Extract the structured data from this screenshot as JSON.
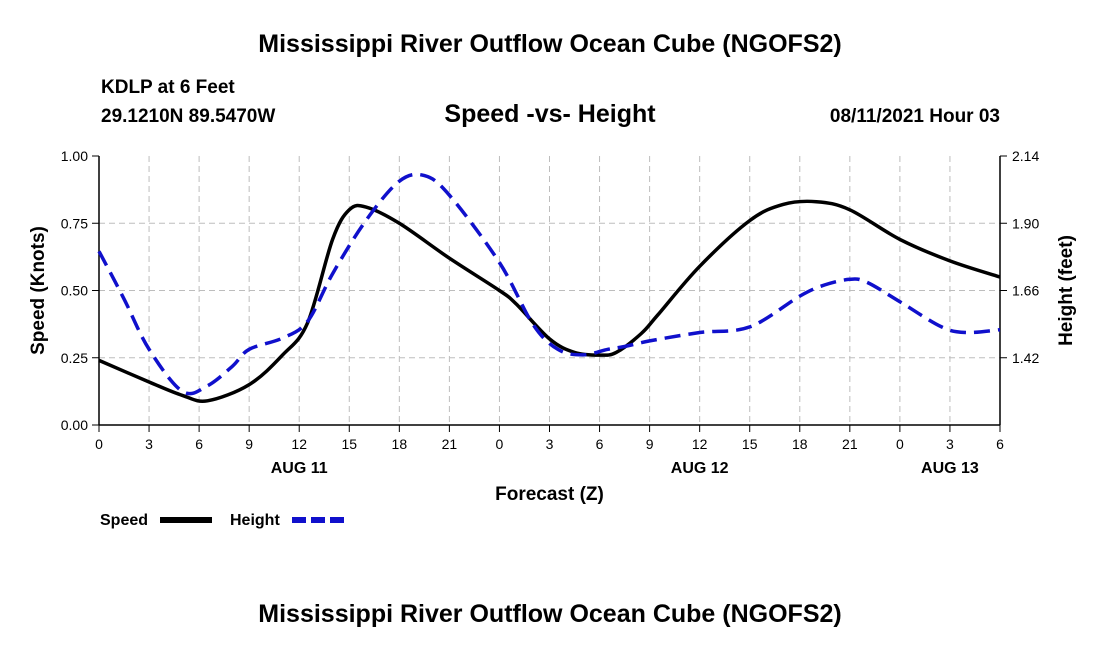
{
  "page": {
    "title_top": "Mississippi River Outflow Ocean Cube (NGOFS2)",
    "title_bottom": "Mississippi River Outflow Ocean Cube (NGOFS2)",
    "station": "KDLP at 6 Feet",
    "coords": "29.1210N  89.5470W",
    "timestamp": "08/11/2021 Hour 03"
  },
  "colors": {
    "speed": "#000000",
    "height": "#1010cc",
    "grid": "#bdbdbd"
  },
  "chart_data": {
    "type": "line",
    "title": "Speed -vs- Height",
    "xlabel": "Forecast (Z)",
    "ylabel": "Speed (Knots)",
    "y2label": "Height (feet)",
    "x_range": [
      0,
      54
    ],
    "ylim": [
      0,
      1.0
    ],
    "y2lim": [
      1.18,
      2.14
    ],
    "y_ticks": [
      0.0,
      0.25,
      0.5,
      0.75,
      1.0
    ],
    "y_tick_labels": [
      "0.00",
      "0.25",
      "0.50",
      "0.75",
      "1.00"
    ],
    "y2_ticks": [
      1.42,
      1.66,
      1.9,
      2.14
    ],
    "y2_tick_labels": [
      "1.42",
      "1.66",
      "1.90",
      "2.14"
    ],
    "x_ticks": [
      0,
      3,
      6,
      9,
      12,
      15,
      18,
      21,
      24,
      27,
      30,
      33,
      36,
      39,
      42,
      45,
      48,
      51,
      54
    ],
    "x_tick_labels": [
      "0",
      "3",
      "6",
      "9",
      "12",
      "15",
      "18",
      "21",
      "0",
      "3",
      "6",
      "9",
      "12",
      "15",
      "18",
      "21",
      "0",
      "3",
      "6"
    ],
    "date_labels": [
      {
        "x": 12,
        "text": "AUG 11"
      },
      {
        "x": 36,
        "text": "AUG 12"
      },
      {
        "x": 51,
        "text": "AUG 13"
      }
    ],
    "legend": [
      "Speed",
      "Height"
    ],
    "series": [
      {
        "name": "Speed",
        "axis": "left",
        "style": "solid",
        "x": [
          0,
          3,
          5,
          6.5,
          9,
          11,
          12.5,
          14,
          15,
          16,
          18,
          21,
          24,
          25,
          27,
          28.5,
          30,
          31,
          32.5,
          33.5,
          36,
          39,
          41,
          43,
          45,
          48,
          51,
          54
        ],
        "values": [
          0.24,
          0.16,
          0.11,
          0.09,
          0.15,
          0.26,
          0.38,
          0.69,
          0.8,
          0.81,
          0.75,
          0.62,
          0.5,
          0.45,
          0.32,
          0.27,
          0.26,
          0.27,
          0.34,
          0.41,
          0.59,
          0.76,
          0.82,
          0.83,
          0.8,
          0.69,
          0.61,
          0.55
        ]
      },
      {
        "name": "Height",
        "axis": "right",
        "style": "dashed",
        "x": [
          0,
          1.5,
          3,
          5,
          6.5,
          8,
          9,
          11,
          12.5,
          14,
          16,
          18,
          19.5,
          21,
          24,
          26,
          27.5,
          29,
          30.5,
          31.5,
          33,
          36,
          39,
          42,
          43.5,
          45,
          46,
          48,
          50.5,
          52,
          54
        ],
        "values": [
          1.8,
          1.63,
          1.45,
          1.3,
          1.32,
          1.39,
          1.45,
          1.49,
          1.55,
          1.72,
          1.91,
          2.05,
          2.07,
          2.0,
          1.76,
          1.54,
          1.45,
          1.43,
          1.45,
          1.46,
          1.48,
          1.51,
          1.53,
          1.64,
          1.68,
          1.7,
          1.69,
          1.62,
          1.53,
          1.51,
          1.52
        ]
      }
    ]
  }
}
